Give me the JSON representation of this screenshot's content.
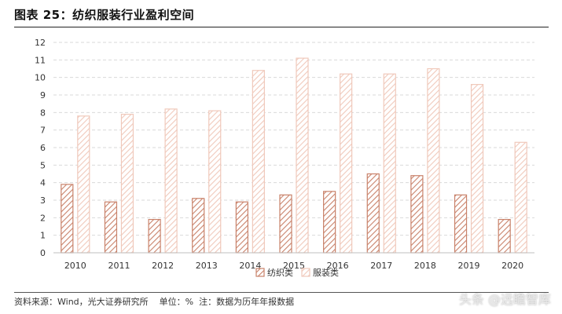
{
  "title": "图表 25：纺织服装行业盈利空间",
  "footer": {
    "source": "资料来源：Wind，光大证券研究所",
    "unit": "单位：%",
    "note": "注：数据为历年年报数据"
  },
  "watermark": "头条 @远瞻智库",
  "chart_data": {
    "type": "bar",
    "categories": [
      "2010",
      "2011",
      "2012",
      "2013",
      "2014",
      "2015",
      "2016",
      "2017",
      "2018",
      "2019",
      "2020"
    ],
    "series": [
      {
        "name": "纺织类",
        "values": [
          3.9,
          2.9,
          1.9,
          3.1,
          2.9,
          3.3,
          3.5,
          4.5,
          4.4,
          3.3,
          1.9
        ],
        "color": "#c9826a"
      },
      {
        "name": "服装类",
        "values": [
          7.8,
          7.9,
          8.2,
          8.1,
          10.4,
          11.1,
          10.2,
          10.2,
          10.5,
          9.6,
          6.3
        ],
        "color": "#f0c9bb"
      }
    ],
    "ylim": [
      0,
      12
    ],
    "yticks": [
      0,
      1,
      2,
      3,
      4,
      5,
      6,
      7,
      8,
      9,
      10,
      11,
      12
    ],
    "grid": true,
    "legend_position": "bottom-center",
    "pattern": "hatched"
  }
}
